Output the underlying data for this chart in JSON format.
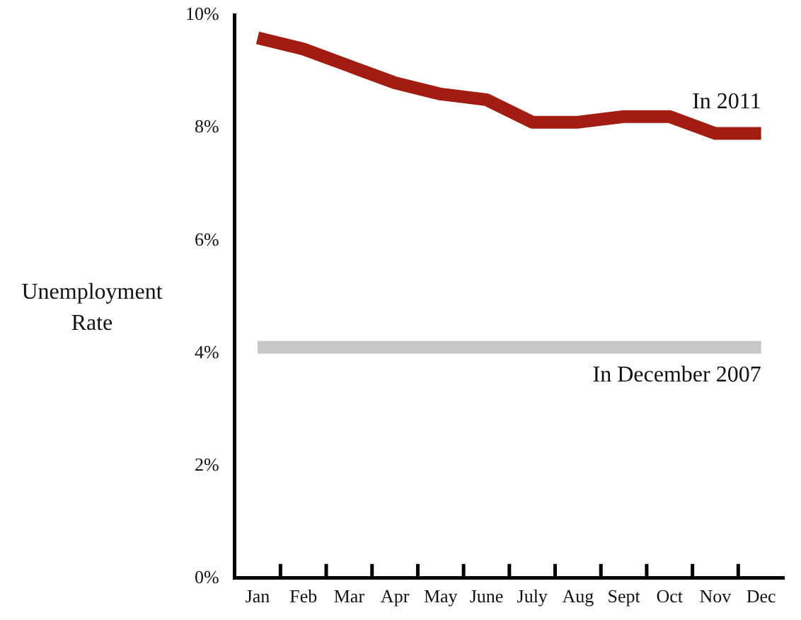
{
  "chart_data": {
    "type": "line",
    "ylabel": "Unemployment Rate",
    "categories": [
      "Jan",
      "Feb",
      "Mar",
      "Apr",
      "May",
      "June",
      "July",
      "Aug",
      "Sept",
      "Oct",
      "Nov",
      "Dec"
    ],
    "series": [
      {
        "name": "In 2011",
        "color": "#a31c12",
        "values": [
          9.6,
          9.4,
          9.1,
          8.8,
          8.6,
          8.5,
          8.1,
          8.1,
          8.2,
          8.2,
          7.9,
          7.9
        ]
      },
      {
        "name": "In December 2007",
        "color": "#c8c8c8",
        "values": [
          4.1,
          4.1,
          4.1,
          4.1,
          4.1,
          4.1,
          4.1,
          4.1,
          4.1,
          4.1,
          4.1,
          4.1
        ]
      }
    ],
    "ylim": [
      0,
      10
    ],
    "yticks": [
      {
        "value": 0,
        "label": "0%"
      },
      {
        "value": 2,
        "label": "2%"
      },
      {
        "value": 4,
        "label": "4%"
      },
      {
        "value": 6,
        "label": "6%"
      },
      {
        "value": 8,
        "label": "8%"
      },
      {
        "value": 10,
        "label": "10%"
      }
    ],
    "grid": false,
    "legend": false,
    "marker": "none",
    "line_style": "solid"
  }
}
